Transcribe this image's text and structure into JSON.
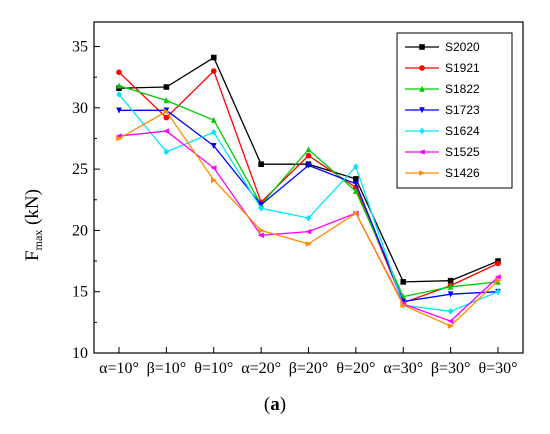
{
  "caption": {
    "open": "(",
    "letter": "a",
    "close": ")"
  },
  "chart_data": {
    "type": "line",
    "ylabel_main": "F",
    "ylabel_sub": "max",
    "ylabel_unit": " (kN)",
    "xlabel": "",
    "ylim": [
      10,
      37
    ],
    "yticks": [
      10,
      15,
      20,
      25,
      30,
      35
    ],
    "categories": [
      "α=10°",
      "β=10°",
      "θ=10°",
      "α=20°",
      "β=20°",
      "θ=20°",
      "α=30°",
      "β=30°",
      "θ=30°"
    ],
    "legend_position": "top-right",
    "grid": false,
    "series": [
      {
        "name": "S2020",
        "color": "#000000",
        "marker": "square",
        "values": [
          31.6,
          31.7,
          34.1,
          25.4,
          25.4,
          24.2,
          15.8,
          15.9,
          17.5
        ]
      },
      {
        "name": "S1921",
        "color": "#ff0000",
        "marker": "circle",
        "values": [
          32.9,
          29.2,
          33.0,
          22.3,
          26.1,
          23.5,
          14.1,
          15.5,
          17.3
        ]
      },
      {
        "name": "S1822",
        "color": "#00cc00",
        "marker": "triangle-up",
        "values": [
          31.8,
          30.6,
          29.0,
          22.1,
          26.6,
          23.2,
          14.6,
          15.4,
          15.8
        ]
      },
      {
        "name": "S1723",
        "color": "#0000ff",
        "marker": "triangle-down",
        "values": [
          29.8,
          29.8,
          26.9,
          22.1,
          25.3,
          23.8,
          14.2,
          14.8,
          15.0
        ]
      },
      {
        "name": "S1624",
        "color": "#00e5ff",
        "marker": "diamond",
        "values": [
          31.1,
          26.4,
          28.0,
          21.8,
          21.0,
          25.2,
          13.9,
          13.4,
          15.0
        ]
      },
      {
        "name": "S1525",
        "color": "#ff00ff",
        "marker": "triangle-left",
        "values": [
          27.7,
          28.1,
          25.1,
          19.6,
          19.9,
          21.4,
          14.0,
          12.6,
          16.2
        ]
      },
      {
        "name": "S1426",
        "color": "#ff8c00",
        "marker": "triangle-right",
        "values": [
          27.5,
          29.7,
          24.1,
          20.0,
          18.9,
          21.4,
          13.9,
          12.2,
          15.9
        ]
      }
    ]
  }
}
